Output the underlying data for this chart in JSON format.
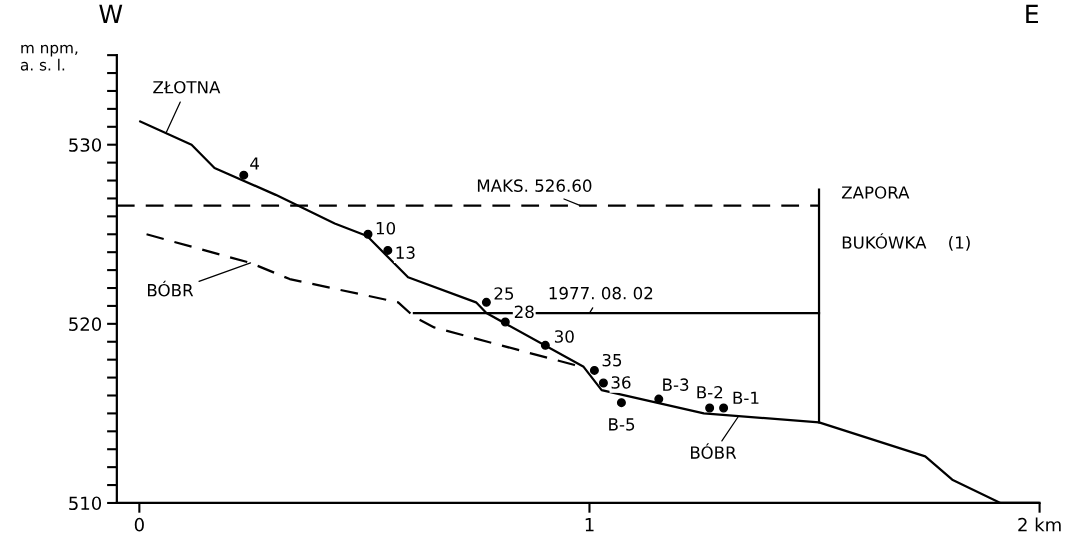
{
  "chart_data": {
    "type": "line",
    "ylabel": "m npm,\na. s. l.",
    "xlim": [
      -0.05,
      2.0
    ],
    "ylim": [
      510,
      535
    ],
    "xticks": [
      0,
      1,
      {
        "value": 2,
        "label": "2 km"
      }
    ],
    "yticks": [
      510,
      {
        "value": 511,
        "label": null
      },
      {
        "value": 512,
        "label": null
      },
      {
        "value": 513,
        "label": null
      },
      {
        "value": 514,
        "label": null
      },
      {
        "value": 515,
        "label": null
      },
      {
        "value": 516,
        "label": null
      },
      {
        "value": 517,
        "label": null
      },
      {
        "value": 518,
        "label": null
      },
      {
        "value": 519,
        "label": null
      },
      520,
      {
        "value": 521,
        "label": null
      },
      {
        "value": 522,
        "label": null
      },
      {
        "value": 523,
        "label": null
      },
      {
        "value": 524,
        "label": null
      },
      {
        "value": 525,
        "label": null
      },
      {
        "value": 526,
        "label": null
      },
      {
        "value": 527,
        "label": null
      },
      {
        "value": 528,
        "label": null
      },
      {
        "value": 529,
        "label": null
      },
      530,
      {
        "value": 531,
        "label": null
      },
      {
        "value": 532,
        "label": null
      },
      {
        "value": 533,
        "label": null
      },
      {
        "value": 534,
        "label": null
      },
      {
        "value": 535,
        "label": null
      }
    ],
    "grid": false,
    "legend": false,
    "series": [
      {
        "color": "#000000",
        "line_style": "solid",
        "x": [
          0.002,
          0.116,
          0.167,
          0.303,
          0.434,
          0.506,
          0.597,
          0.748,
          0.771,
          0.987,
          1.027,
          1.254,
          1.51,
          1.746,
          1.806,
          1.913,
          2.0
        ],
        "values": [
          531.3,
          530.0,
          528.7,
          527.2,
          525.6,
          524.9,
          522.6,
          521.2,
          520.6,
          517.6,
          516.3,
          515.0,
          514.5,
          512.6,
          511.3,
          510.0,
          510.0
        ]
      },
      {
        "color": "#000000",
        "line_style": "dashed",
        "x": [
          0.016,
          0.247,
          0.334,
          0.575,
          0.61,
          0.655,
          0.967,
          0.99
        ],
        "values": [
          525.0,
          523.4,
          522.5,
          521.2,
          520.4,
          519.8,
          517.7,
          517.5
        ]
      },
      {
        "color": "#000000",
        "line_style": "dashed",
        "x": [
          -0.05,
          1.51
        ],
        "values": [
          526.6,
          526.6
        ]
      },
      {
        "color": "#000000",
        "line_style": "solid",
        "x": [
          0.61,
          1.51
        ],
        "values": [
          520.6,
          520.6
        ]
      },
      {
        "color": "#000000",
        "line_style": "solid",
        "x": [
          1.51,
          1.51
        ],
        "values": [
          514.5,
          527.5
        ]
      },
      {
        "type": "scatter",
        "color": "#000000",
        "marker": "circle",
        "x": [
          0.232,
          0.508,
          0.552,
          0.771,
          0.813,
          0.902,
          1.011,
          1.031,
          1.071,
          1.154,
          1.267,
          1.298
        ],
        "values": [
          528.3,
          525.0,
          524.1,
          521.2,
          520.1,
          518.8,
          517.4,
          516.7,
          515.6,
          515.8,
          515.3,
          515.3
        ]
      }
    ],
    "annotations": [
      {
        "text": "ZŁOTNA",
        "x": 0.06,
        "y": 530.7
      },
      {
        "text": "BÓBR",
        "x": 0.247,
        "y": 523.4
      },
      {
        "text": "BÓBR",
        "x": 1.33,
        "y": 514.8
      },
      {
        "text": "MAKS. 526.60",
        "x": 0.98,
        "y": 526.6
      },
      {
        "text": "1977. 08. 02",
        "x": 1.0,
        "y": 520.6
      },
      {
        "text": "4",
        "x": 0.232,
        "y": 528.3
      },
      {
        "text": "10",
        "x": 0.508,
        "y": 525.0
      },
      {
        "text": "13",
        "x": 0.552,
        "y": 524.1
      },
      {
        "text": "25",
        "x": 0.771,
        "y": 521.2
      },
      {
        "text": "28",
        "x": 0.813,
        "y": 520.1
      },
      {
        "text": "30",
        "x": 0.902,
        "y": 518.8
      },
      {
        "text": "35",
        "x": 1.011,
        "y": 517.4
      },
      {
        "text": "36",
        "x": 1.031,
        "y": 516.7
      },
      {
        "text": "B-5",
        "x": 1.071,
        "y": 515.6
      },
      {
        "text": "B-3",
        "x": 1.154,
        "y": 515.8
      },
      {
        "text": "B-2",
        "x": 1.267,
        "y": 515.3
      },
      {
        "text": "B-1",
        "x": 1.298,
        "y": 515.3
      },
      "ZAPORA",
      "BUKÓWKA    (1)",
      "W",
      "E"
    ]
  }
}
